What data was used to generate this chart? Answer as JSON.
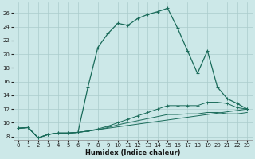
{
  "background_color": "#cce8e8",
  "grid_color": "#aacccc",
  "line_color": "#1a6b5a",
  "xlabel": "Humidex (Indice chaleur)",
  "ylim": [
    7.5,
    27.5
  ],
  "xlim": [
    -0.5,
    23.5
  ],
  "yticks": [
    8,
    10,
    12,
    14,
    16,
    18,
    20,
    22,
    24,
    26
  ],
  "xticks": [
    0,
    1,
    2,
    3,
    4,
    5,
    6,
    7,
    8,
    9,
    10,
    11,
    12,
    13,
    14,
    15,
    16,
    17,
    18,
    19,
    20,
    21,
    22,
    23
  ],
  "curve1_x": [
    0,
    1,
    2,
    3,
    4,
    5,
    6,
    7,
    8,
    9,
    10,
    11,
    12,
    13,
    14,
    15,
    16,
    17,
    18,
    19,
    20,
    21,
    22,
    23
  ],
  "curve1_y": [
    9.2,
    9.3,
    7.8,
    8.3,
    8.5,
    8.5,
    8.6,
    15.2,
    21.0,
    23.0,
    24.5,
    24.2,
    25.2,
    25.8,
    26.2,
    26.7,
    23.8,
    20.5,
    17.2,
    20.5,
    15.2,
    13.5,
    12.8,
    12.0
  ],
  "curve1_markers": [
    0,
    1,
    2,
    3,
    4,
    5,
    6,
    7,
    8,
    9,
    10,
    11,
    12,
    13,
    14,
    15,
    16,
    17,
    18,
    19,
    20,
    21,
    22,
    23
  ],
  "curve2_x": [
    0,
    1,
    2,
    3,
    4,
    5,
    6,
    23
  ],
  "curve2_y": [
    9.2,
    9.3,
    7.8,
    8.3,
    8.5,
    8.5,
    8.6,
    12.0
  ],
  "curve3_x": [
    0,
    1,
    2,
    3,
    4,
    5,
    6,
    7,
    8,
    9,
    10,
    11,
    12,
    13,
    14,
    15,
    16,
    17,
    18,
    19,
    20,
    21,
    22,
    23
  ],
  "curve3_y": [
    9.2,
    9.3,
    7.8,
    8.3,
    8.5,
    8.5,
    8.6,
    8.8,
    9.1,
    9.5,
    10.0,
    10.5,
    11.0,
    11.5,
    12.0,
    12.5,
    12.5,
    12.5,
    12.5,
    13.0,
    13.0,
    12.8,
    12.2,
    12.0
  ],
  "curve4_x": [
    0,
    1,
    2,
    3,
    4,
    5,
    6,
    7,
    8,
    9,
    10,
    11,
    12,
    13,
    14,
    15,
    16,
    17,
    18,
    19,
    20,
    21,
    22,
    23
  ],
  "curve4_y": [
    9.2,
    9.3,
    7.8,
    8.3,
    8.5,
    8.5,
    8.6,
    8.8,
    9.0,
    9.3,
    9.7,
    10.0,
    10.3,
    10.6,
    10.9,
    11.2,
    11.2,
    11.3,
    11.3,
    11.5,
    11.5,
    11.3,
    11.3,
    11.5
  ]
}
